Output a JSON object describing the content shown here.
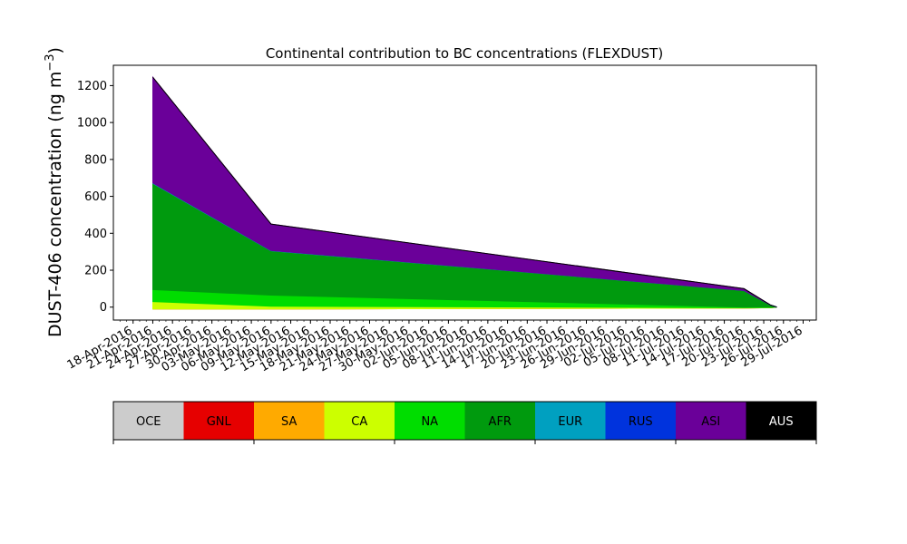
{
  "chart_data": {
    "type": "area",
    "stacked": true,
    "title": "Continental contribution to BC concentrations (FLEXDUST)",
    "ylabel_main": "DUST-406 concentration (ng m",
    "ylabel_sup": "−3",
    "ylabel_close": ")",
    "xlabel": "",
    "x": [
      "2016-04-21",
      "2016-05-09",
      "2016-07-20",
      "2016-07-24",
      "2016-07-25"
    ],
    "x_range": [
      "2016-04-15",
      "2016-07-31"
    ],
    "ylim": [
      -70,
      1310
    ],
    "yticks": [
      0,
      200,
      400,
      600,
      800,
      1000,
      1200
    ],
    "xtick_labels": [
      "18-Apr-2016",
      "21-Apr-2016",
      "24-Apr-2016",
      "27-Apr-2016",
      "30-Apr-2016",
      "03-May-2016",
      "06-May-2016",
      "09-May-2016",
      "12-May-2016",
      "15-May-2016",
      "18-May-2016",
      "21-May-2016",
      "24-May-2016",
      "27-May-2016",
      "30-May-2016",
      "02-Jun-2016",
      "05-Jun-2016",
      "08-Jun-2016",
      "11-Jun-2016",
      "14-Jun-2016",
      "17-Jun-2016",
      "20-Jun-2016",
      "23-Jun-2016",
      "26-Jun-2016",
      "29-Jun-2016",
      "02-Jul-2016",
      "05-Jul-2016",
      "08-Jul-2016",
      "11-Jul-2016",
      "14-Jul-2016",
      "17-Jul-2016",
      "20-Jul-2016",
      "23-Jul-2016",
      "26-Jul-2016",
      "29-Jul-2016"
    ],
    "xtick_start": "2016-04-18",
    "xtick_step_days": 3,
    "series": [
      {
        "name": "OCE",
        "color": "#cccccc",
        "values": [
          -10,
          -10,
          -5,
          -3,
          0
        ]
      },
      {
        "name": "GNL",
        "color": "#e60000",
        "values": [
          0,
          0,
          0,
          0,
          0
        ]
      },
      {
        "name": "SA",
        "color": "#ffaa00",
        "values": [
          0,
          0,
          0,
          0,
          0
        ]
      },
      {
        "name": "CA",
        "color": "#ccff00",
        "values": [
          40,
          15,
          2,
          1,
          0
        ]
      },
      {
        "name": "NA",
        "color": "#00dd00",
        "values": [
          65,
          60,
          3,
          2,
          0
        ]
      },
      {
        "name": "AFR",
        "color": "#009a0e",
        "values": [
          575,
          240,
          90,
          12,
          0
        ]
      },
      {
        "name": "EUR",
        "color": "#00a0c0",
        "values": [
          3,
          2,
          0,
          0,
          0
        ]
      },
      {
        "name": "RUS",
        "color": "#0033dd",
        "values": [
          0,
          0,
          0,
          0,
          0
        ]
      },
      {
        "name": "ASI",
        "color": "#6a0099",
        "values": [
          572,
          143,
          10,
          0,
          0
        ]
      },
      {
        "name": "AUS",
        "color": "#000000",
        "values": [
          0,
          0,
          0,
          0,
          0
        ]
      }
    ],
    "legend": {
      "placement": "below"
    }
  }
}
